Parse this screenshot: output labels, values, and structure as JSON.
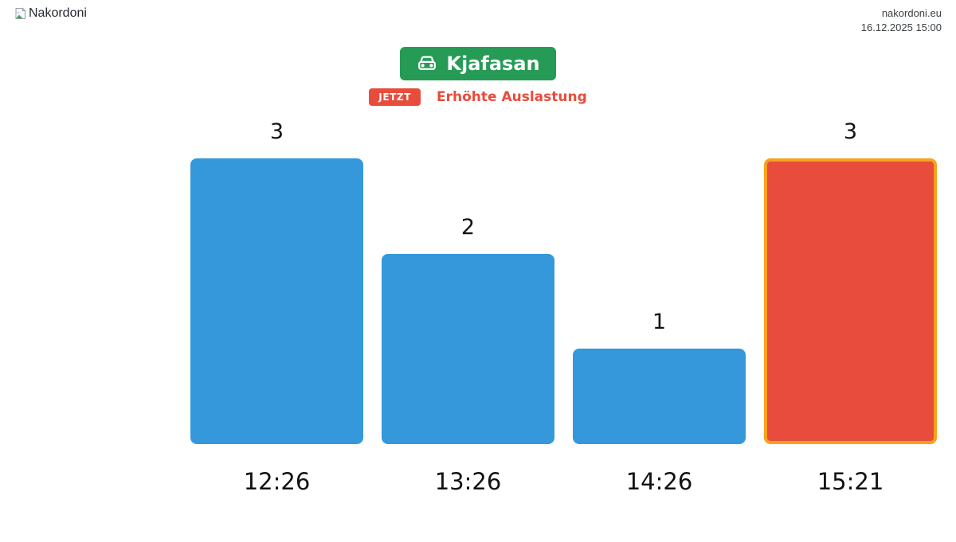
{
  "header": {
    "logo_alt": "Nakordoni",
    "site": "nakordoni.eu",
    "datetime": "16.12.2025 15:00"
  },
  "station": {
    "name": "Kjafasan",
    "icon": "car-icon",
    "color": "#259b56"
  },
  "status": {
    "badge": "JETZT",
    "message": "Erhöhte Auslastung",
    "color": "#e74c3c"
  },
  "chart_data": {
    "type": "bar",
    "title": "",
    "xlabel": "",
    "ylabel": "",
    "categories": [
      "12:26",
      "13:26",
      "14:26",
      "15:21"
    ],
    "values": [
      3,
      2,
      1,
      3
    ],
    "value_labels": [
      "3",
      "2",
      "1",
      "3"
    ],
    "ylim": [
      0,
      3
    ],
    "grid": false,
    "legend": false,
    "bar_colors": [
      "#3498db",
      "#3498db",
      "#3498db",
      "#e74c3c"
    ],
    "highlight_index": 3,
    "highlight_border_color": "#f9a11b"
  }
}
